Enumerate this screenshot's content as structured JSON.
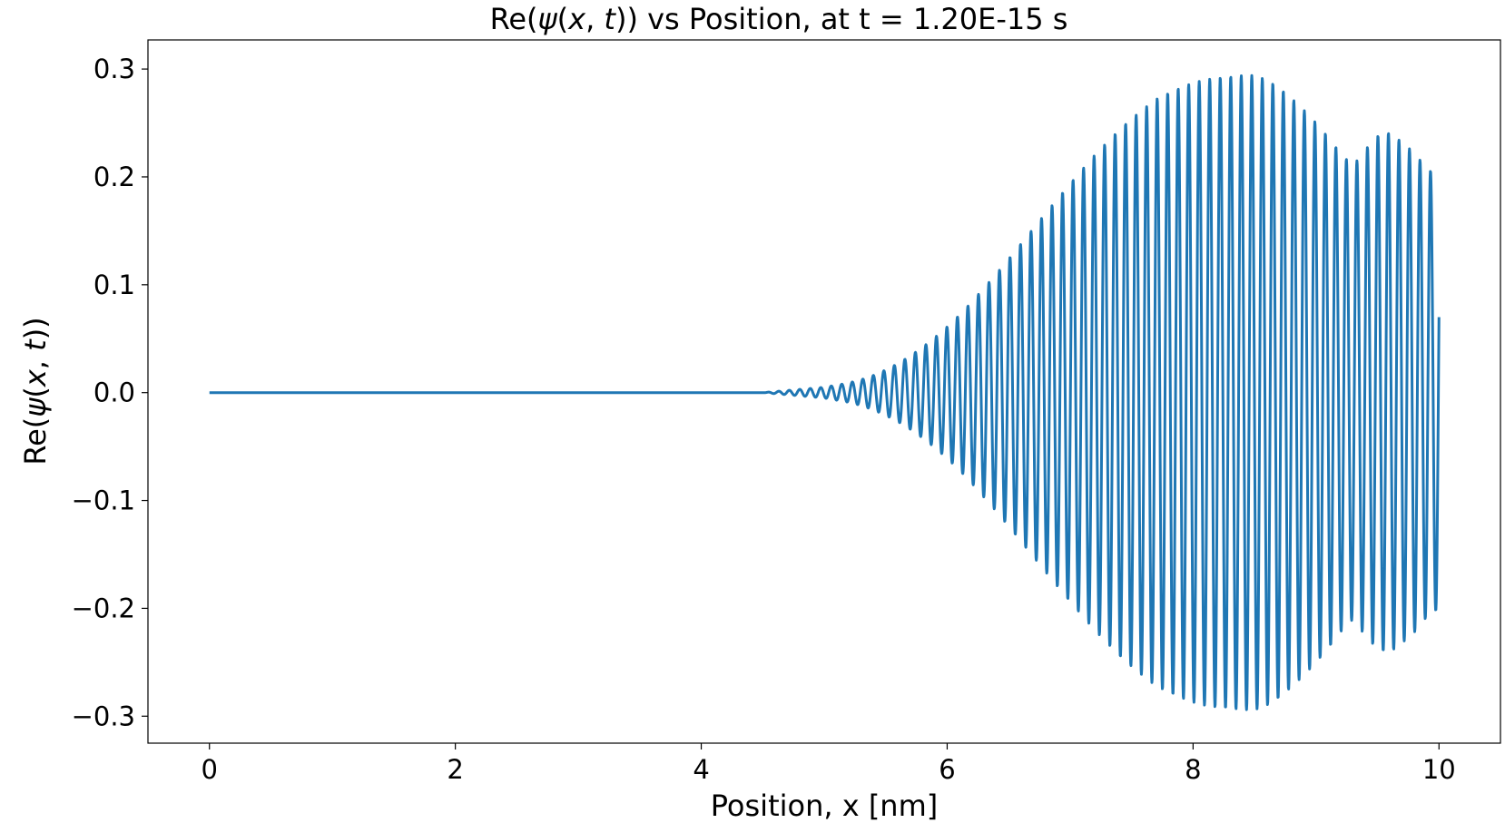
{
  "chart_data": {
    "type": "line",
    "title": "Re(ψ(x, t)) vs Position, at t = 1.20E-15 s",
    "title_parts": [
      "Re(",
      "ψ",
      "(",
      "x",
      ", ",
      "t",
      ")) vs Position, at t = 1.20E-15 s"
    ],
    "xlabel": "Position, x [nm]",
    "ylabel": "Re(ψ(x, t))",
    "ylabel_parts": [
      "Re(",
      "ψ",
      "(",
      "x",
      ", ",
      "t",
      "))"
    ],
    "xlim": [
      -0.5,
      10.5
    ],
    "ylim": [
      -0.325,
      0.327
    ],
    "xticks": [
      0,
      2,
      4,
      6,
      8,
      10
    ],
    "xtick_labels": [
      "0",
      "2",
      "4",
      "6",
      "8",
      "10"
    ],
    "yticks": [
      -0.3,
      -0.2,
      -0.1,
      0.0,
      0.1,
      0.2,
      0.3
    ],
    "ytick_labels": [
      "−0.3",
      "−0.2",
      "−0.1",
      "0.0",
      "0.1",
      "0.2",
      "0.3"
    ],
    "grid": false,
    "legend": "none",
    "line_color": "#1f77b4",
    "series": [
      {
        "x": [
          0,
          4.5,
          4.6,
          4.7,
          4.8,
          4.9,
          5.0,
          5.1,
          5.2,
          5.3,
          5.4,
          5.5,
          5.6,
          5.7,
          5.8,
          5.9,
          6.0,
          6.1,
          6.2,
          6.3,
          6.4,
          6.5,
          6.6,
          6.7,
          6.8,
          6.9,
          7.0,
          7.1,
          7.2,
          7.3,
          7.4,
          7.5,
          7.6,
          7.7,
          7.8,
          7.9,
          8.0,
          8.1,
          8.2,
          8.3,
          8.4,
          8.5,
          8.6,
          8.7,
          8.8,
          8.9,
          9.0,
          9.1,
          9.2,
          9.3,
          9.4,
          9.5,
          9.6,
          9.7,
          9.8,
          9.9,
          10.0
        ],
        "envelope": [
          0,
          0,
          0.001,
          0.002,
          0.003,
          0.004,
          0.005,
          0.007,
          0.009,
          0.012,
          0.016,
          0.021,
          0.027,
          0.034,
          0.042,
          0.051,
          0.061,
          0.072,
          0.084,
          0.097,
          0.11,
          0.124,
          0.138,
          0.152,
          0.166,
          0.18,
          0.194,
          0.207,
          0.22,
          0.232,
          0.244,
          0.254,
          0.263,
          0.272,
          0.278,
          0.283,
          0.287,
          0.29,
          0.292,
          0.293,
          0.294,
          0.294,
          0.29,
          0.283,
          0.273,
          0.262,
          0.25,
          0.237,
          0.222,
          0.21,
          0.225,
          0.238,
          0.241,
          0.232,
          0.222,
          0.208,
          0.2
        ],
        "period": 0.0855,
        "end_value": 0.07
      }
    ]
  }
}
